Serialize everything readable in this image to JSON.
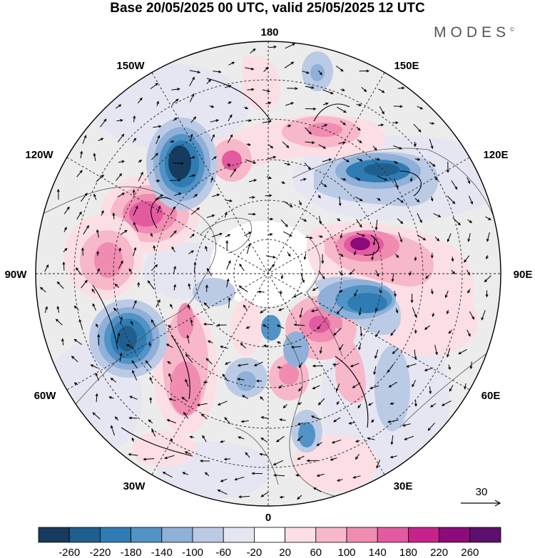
{
  "title": "Base 20/05/2025 00 UTC, valid 25/05/2025 12 UTC",
  "brand": "MODES",
  "brand_mark": "©",
  "longitude_labels": {
    "top": "180",
    "top_left": "150W",
    "top_right": "150E",
    "upper_left": "120W",
    "upper_right": "120E",
    "left": "90W",
    "right": "90E",
    "lower_left": "60W",
    "lower_right": "60E",
    "bottom_left": "30W",
    "bottom_right": "30E",
    "bottom": "0"
  },
  "vector_legend": {
    "label": "30"
  },
  "colorbar": {
    "ticks": [
      "-260",
      "-220",
      "-180",
      "-140",
      "-100",
      "-60",
      "-20",
      "20",
      "60",
      "100",
      "140",
      "180",
      "220",
      "260"
    ],
    "colors": [
      "#163b5e",
      "#1f5f8f",
      "#2f7cb3",
      "#5293c6",
      "#8fb0d8",
      "#bccbe5",
      "#e6e6f2",
      "#ffffff",
      "#fbdfe4",
      "#f7b8c9",
      "#f08bb1",
      "#e45aa1",
      "#c7228c",
      "#8d0a7b",
      "#5c0f6e"
    ]
  },
  "colors": {
    "ocean": "#ffffff",
    "land_background": "#ececec",
    "coast": "#555555"
  }
}
